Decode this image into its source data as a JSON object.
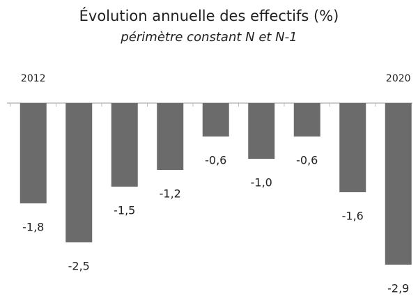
{
  "chart_data": {
    "type": "bar",
    "title": "Évolution annuelle des effectifs (%)",
    "subtitle": "périmètre constant N et N-1",
    "categories": [
      "2012",
      null,
      null,
      null,
      null,
      null,
      null,
      null,
      "2020"
    ],
    "values": [
      -1.8,
      -2.5,
      -1.5,
      -1.2,
      -0.6,
      -1.0,
      -0.6,
      -1.6,
      -2.9
    ],
    "value_labels": [
      "-1,8",
      "-2,5",
      "-1,5",
      "-1,2",
      "-0,6",
      "-1,0",
      "-0,6",
      "-1,6",
      "-2,9"
    ],
    "color": "#6b6b6b",
    "ylim": [
      -3,
      0
    ]
  }
}
